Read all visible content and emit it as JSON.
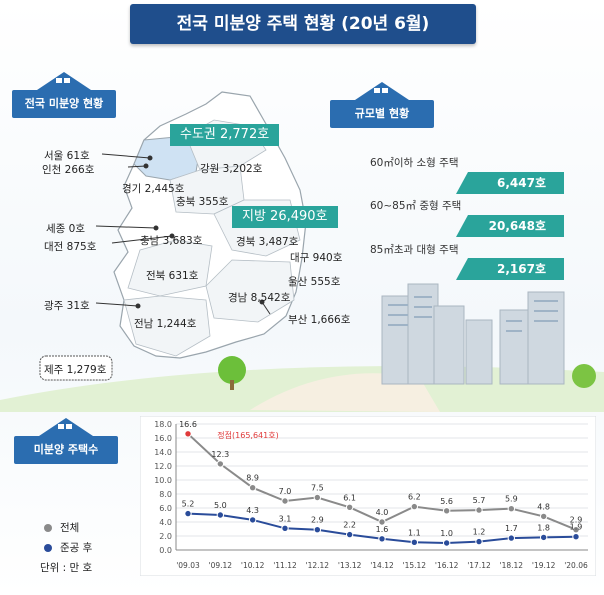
{
  "title": "전국 미분양 주택 현황 (20년 6월)",
  "sections": {
    "national": "전국 미분양 현황",
    "by_size": "규모별 현황",
    "count": "미분양 주택수"
  },
  "map": {
    "capital_total": "수도권 2,772호",
    "regional_total": "지방 26,490호",
    "regions": [
      "서울 61호",
      "인천 266호",
      "경기 2,445호",
      "강원 3,202호",
      "충북 355호",
      "세종 0호",
      "충남 3,683호",
      "대전 875호",
      "경북 3,487호",
      "대구 940호",
      "전북 631호",
      "울산 555호",
      "광주 31호",
      "경남 8,542호",
      "부산 1,666호",
      "전남 1,244호",
      "제주 1,279호"
    ]
  },
  "size_breakdown": [
    {
      "label": "60㎡이하 소형 주택",
      "value": "6,447호"
    },
    {
      "label": "60~85㎡ 중형 주택",
      "value": "20,648호"
    },
    {
      "label": "85㎡초과 대형 주택",
      "value": "2,167호"
    }
  ],
  "legend": {
    "total": "전체",
    "completed": "준공 후",
    "unit": "단위 : 만 호"
  },
  "colors": {
    "navy": "#1f4e8c",
    "teal": "#2aa49b",
    "house": "#2b6db0",
    "total": "#8a8a8a",
    "completed": "#2a4c9a",
    "peak": "#e03a3a"
  },
  "chart_data": {
    "type": "line",
    "categories": [
      "'09.03",
      "'09.12",
      "'10.12",
      "'11.12",
      "'12.12",
      "'13.12",
      "'14.12",
      "'15.12",
      "'16.12",
      "'17.12",
      "'18.12",
      "'19.12",
      "'20.06"
    ],
    "series": [
      {
        "name": "전체",
        "values": [
          16.6,
          12.3,
          8.9,
          7.0,
          7.5,
          6.1,
          4.0,
          6.2,
          5.6,
          5.7,
          5.9,
          4.8,
          2.9
        ],
        "labels": [
          "16.6",
          "12.3",
          "8.9",
          "7.0",
          "7.5",
          "6.1",
          "4.0",
          "6.2",
          "5.6",
          "5.7",
          "5.9",
          "4.8",
          "2.9"
        ]
      },
      {
        "name": "준공 후",
        "values": [
          5.2,
          5.0,
          4.3,
          3.1,
          2.9,
          2.2,
          1.6,
          1.1,
          1.0,
          1.2,
          1.7,
          1.8,
          1.9
        ],
        "labels": [
          "5.2",
          "5.0",
          "4.3",
          "3.1",
          "2.9",
          "2.2",
          "1.6",
          "1.1",
          "1.0",
          "1.2",
          "1.7",
          "1.8",
          "1.9"
        ]
      }
    ],
    "annotation": "정점(165,641호)",
    "ylim": [
      0,
      18
    ],
    "yticks": [
      "0.0",
      "2.0",
      "4.0",
      "6.0",
      "8.0",
      "10.0",
      "12.0",
      "14.0",
      "16.0",
      "18.0"
    ],
    "grid": true,
    "legend_position": "left"
  }
}
